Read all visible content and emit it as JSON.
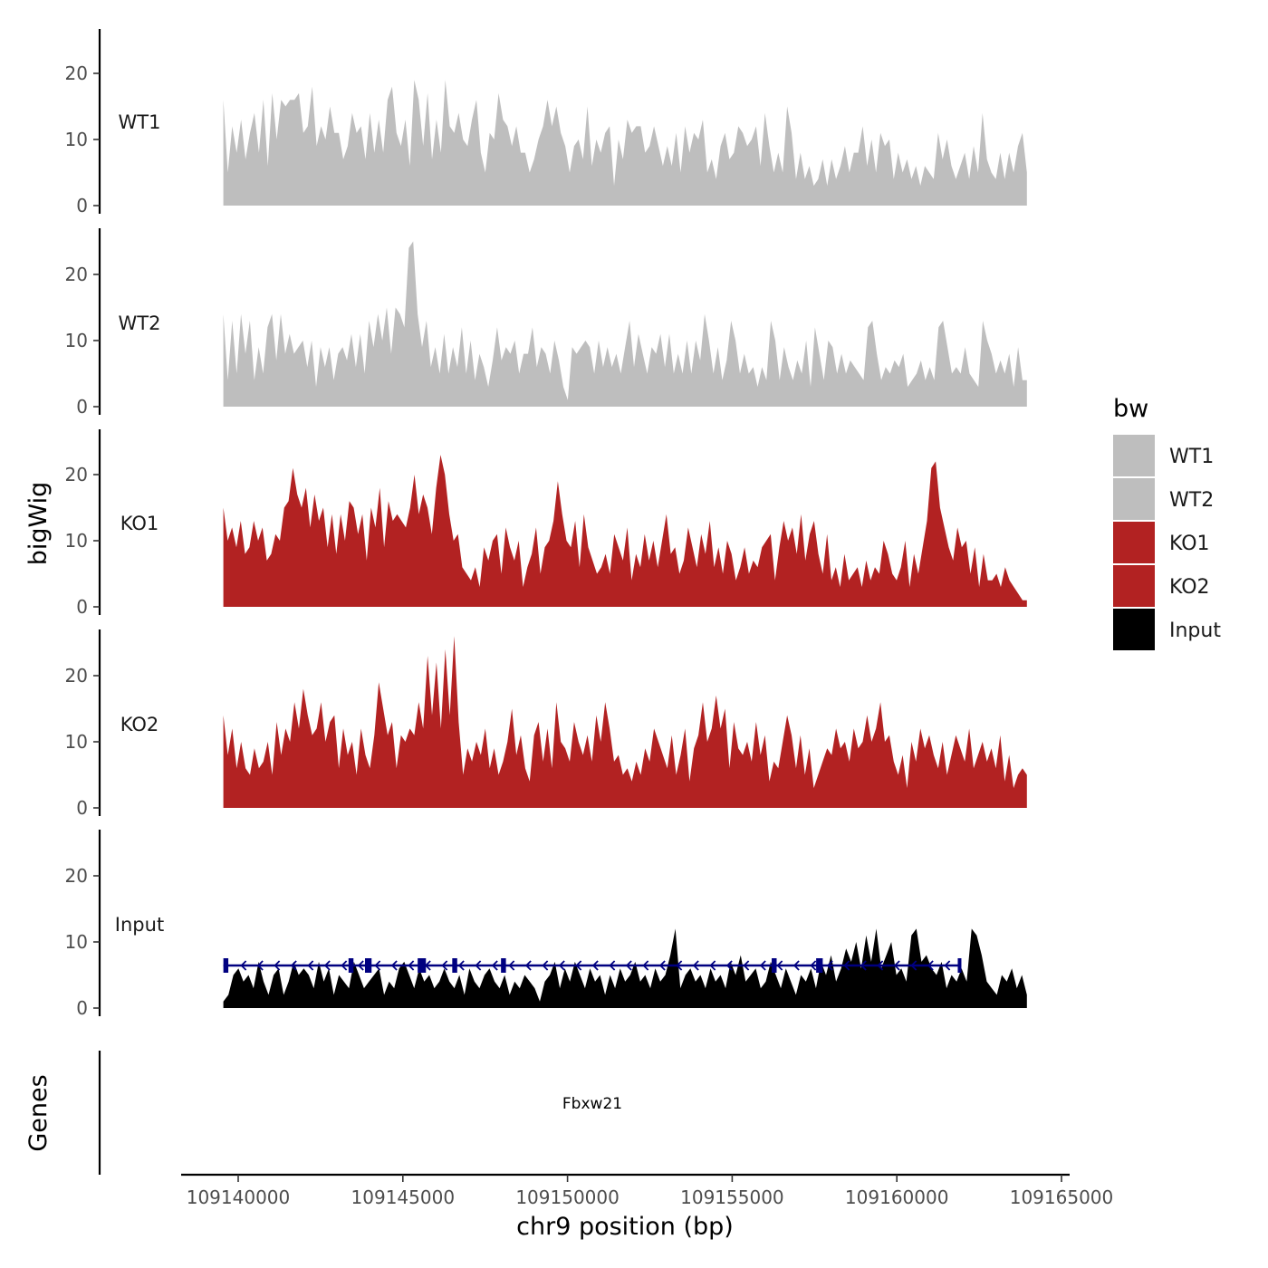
{
  "chart_data": {
    "type": "area",
    "xlabel": "chr9 position (bp)",
    "ylabel": "bigWig",
    "gene_track_label": "Genes",
    "xlim": [
      109139200,
      109165200
    ],
    "ylim": [
      0,
      27
    ],
    "yticks": [
      "0",
      "10",
      "20"
    ],
    "xticks": [
      {
        "value": 109140000,
        "label": "109140000"
      },
      {
        "value": 109145000,
        "label": "109145000"
      },
      {
        "value": 109150000,
        "label": "109150000"
      },
      {
        "value": 109155000,
        "label": "109155000"
      },
      {
        "value": 109160000,
        "label": "109160000"
      },
      {
        "value": 109165000,
        "label": "109165000"
      }
    ],
    "legend": {
      "title": "bw",
      "position": "right",
      "entries": [
        {
          "label": "WT1",
          "color": "#bebebe"
        },
        {
          "label": "WT2",
          "color": "#bebebe"
        },
        {
          "label": "KO1",
          "color": "#b22222"
        },
        {
          "label": "KO2",
          "color": "#b22222"
        },
        {
          "label": "Input",
          "color": "#000000"
        }
      ]
    },
    "x_start": 109139550,
    "x_end": 109163950,
    "series": [
      {
        "name": "WT1",
        "color": "#bebebe",
        "values": [
          16,
          5,
          12,
          8,
          13,
          7,
          11,
          14,
          8,
          16,
          6,
          17,
          10,
          16,
          15,
          16,
          16,
          17,
          11,
          12,
          18,
          9,
          12,
          10,
          15,
          11,
          11,
          7,
          9,
          14,
          11,
          12,
          7,
          14,
          8,
          13,
          8,
          16,
          18,
          11,
          9,
          13,
          6,
          19,
          16,
          9,
          17,
          7,
          13,
          8,
          19,
          12,
          11,
          14,
          10,
          9,
          13,
          16,
          8,
          5,
          11,
          10,
          17,
          13,
          12,
          9,
          12,
          8,
          8,
          5,
          7,
          10,
          12,
          16,
          12,
          15,
          11,
          9,
          5,
          9,
          10,
          7,
          15,
          6,
          10,
          8,
          11,
          12,
          3,
          10,
          7,
          13,
          11,
          12,
          12,
          8,
          9,
          12,
          9,
          6,
          9,
          6,
          11,
          5,
          12,
          8,
          11,
          10,
          13,
          5,
          7,
          4,
          9,
          11,
          7,
          8,
          12,
          11,
          9,
          10,
          12,
          6,
          14,
          9,
          5,
          8,
          5,
          15,
          11,
          4,
          8,
          4,
          6,
          3,
          4,
          7,
          3,
          7,
          4,
          6,
          9,
          5,
          8,
          8,
          12,
          6,
          10,
          5,
          11,
          9,
          10,
          4,
          8,
          5,
          7,
          4,
          6,
          3,
          6,
          5,
          4,
          11,
          7,
          10,
          6,
          4,
          6,
          8,
          4,
          9,
          5,
          14,
          7,
          5,
          4,
          8,
          4,
          8,
          5,
          9,
          11,
          5
        ]
      },
      {
        "name": "WT2",
        "color": "#bebebe",
        "values": [
          14,
          4,
          13,
          5,
          14,
          8,
          13,
          4,
          9,
          5,
          12,
          14,
          7,
          14,
          8,
          11,
          8,
          9,
          10,
          6,
          10,
          3,
          9,
          6,
          9,
          4,
          8,
          9,
          7,
          11,
          6,
          11,
          5,
          13,
          9,
          14,
          10,
          15,
          8,
          15,
          14,
          12,
          24,
          25,
          14,
          9,
          13,
          6,
          9,
          5,
          11,
          5,
          9,
          6,
          12,
          5,
          10,
          4,
          8,
          6,
          3,
          7,
          12,
          7,
          9,
          8,
          10,
          5,
          8,
          8,
          12,
          6,
          9,
          8,
          5,
          10,
          7,
          3,
          1,
          9,
          8,
          9,
          10,
          9,
          5,
          10,
          6,
          9,
          6,
          8,
          5,
          9,
          13,
          6,
          11,
          8,
          5,
          9,
          8,
          11,
          6,
          11,
          5,
          8,
          5,
          10,
          5,
          10,
          7,
          14,
          10,
          5,
          9,
          4,
          7,
          13,
          10,
          5,
          8,
          5,
          6,
          3,
          6,
          4,
          13,
          10,
          4,
          9,
          6,
          4,
          7,
          5,
          10,
          3,
          12,
          8,
          4,
          10,
          9,
          5,
          8,
          5,
          7,
          6,
          5,
          4,
          12,
          13,
          8,
          4,
          6,
          5,
          7,
          6,
          8,
          3,
          4,
          5,
          7,
          4,
          6,
          4,
          12,
          13,
          9,
          5,
          6,
          5,
          9,
          5,
          4,
          3,
          13,
          10,
          8,
          5,
          7,
          5,
          8,
          3,
          9,
          4,
          4
        ]
      },
      {
        "name": "KO1",
        "color": "#b22222",
        "values": [
          15,
          10,
          12,
          9,
          13,
          8,
          9,
          13,
          10,
          12,
          7,
          8,
          11,
          10,
          15,
          16,
          21,
          17,
          15,
          18,
          12,
          17,
          13,
          15,
          9,
          14,
          8,
          14,
          10,
          16,
          15,
          11,
          14,
          7,
          15,
          12,
          18,
          9,
          16,
          13,
          14,
          13,
          12,
          15,
          20,
          14,
          17,
          15,
          11,
          18,
          23,
          20,
          14,
          10,
          11,
          6,
          5,
          4,
          6,
          3,
          9,
          7,
          10,
          11,
          5,
          12,
          9,
          7,
          10,
          3,
          6,
          8,
          12,
          5,
          9,
          10,
          13,
          19,
          14,
          10,
          9,
          13,
          6,
          14,
          9,
          7,
          5,
          6,
          8,
          5,
          11,
          9,
          7,
          12,
          4,
          8,
          6,
          11,
          7,
          10,
          6,
          10,
          14,
          8,
          9,
          5,
          7,
          12,
          9,
          6,
          11,
          8,
          13,
          6,
          9,
          5,
          10,
          8,
          4,
          6,
          9,
          5,
          7,
          6,
          9,
          10,
          11,
          4,
          9,
          13,
          10,
          12,
          8,
          14,
          7,
          11,
          13,
          8,
          5,
          11,
          4,
          6,
          3,
          8,
          4,
          5,
          6,
          3,
          7,
          4,
          6,
          5,
          10,
          8,
          5,
          4,
          6,
          10,
          3,
          8,
          5,
          9,
          13,
          21,
          22,
          15,
          12,
          9,
          7,
          12,
          9,
          10,
          5,
          9,
          3,
          8,
          4,
          4,
          5,
          3,
          6,
          4,
          3,
          2,
          1,
          1
        ]
      },
      {
        "name": "KO2",
        "color": "#b22222",
        "values": [
          14,
          8,
          12,
          6,
          10,
          6,
          5,
          9,
          6,
          7,
          10,
          5,
          13,
          8,
          12,
          10,
          16,
          12,
          18,
          14,
          11,
          12,
          16,
          10,
          13,
          14,
          6,
          12,
          8,
          10,
          5,
          12,
          8,
          6,
          11,
          19,
          15,
          11,
          13,
          6,
          11,
          10,
          12,
          11,
          16,
          12,
          23,
          14,
          22,
          12,
          24,
          14,
          26,
          13,
          5,
          9,
          7,
          10,
          8,
          12,
          6,
          9,
          5,
          7,
          10,
          15,
          8,
          11,
          6,
          4,
          11,
          13,
          7,
          12,
          6,
          16,
          10,
          9,
          7,
          13,
          10,
          8,
          11,
          7,
          14,
          10,
          16,
          12,
          7,
          8,
          5,
          6,
          4,
          7,
          5,
          9,
          7,
          12,
          10,
          8,
          6,
          11,
          5,
          8,
          12,
          4,
          9,
          11,
          16,
          10,
          12,
          17,
          12,
          15,
          6,
          13,
          9,
          8,
          10,
          7,
          13,
          8,
          11,
          4,
          7,
          6,
          10,
          14,
          11,
          6,
          11,
          5,
          9,
          3,
          5,
          7,
          9,
          8,
          12,
          9,
          10,
          7,
          12,
          9,
          10,
          14,
          10,
          12,
          16,
          10,
          11,
          7,
          5,
          8,
          3,
          10,
          7,
          12,
          9,
          11,
          8,
          6,
          10,
          5,
          8,
          11,
          9,
          7,
          12,
          6,
          8,
          10,
          7,
          9,
          6,
          11,
          4,
          8,
          3,
          5,
          6,
          5
        ]
      },
      {
        "name": "Input",
        "color": "#000000",
        "values": [
          1,
          2,
          5,
          6,
          4,
          5,
          3,
          7,
          4,
          2,
          5,
          6,
          2,
          4,
          7,
          5,
          6,
          5,
          3,
          7,
          4,
          6,
          2,
          5,
          4,
          3,
          7,
          5,
          3,
          4,
          5,
          6,
          2,
          4,
          3,
          6,
          7,
          5,
          3,
          6,
          4,
          5,
          3,
          4,
          6,
          4,
          3,
          5,
          2,
          6,
          4,
          3,
          5,
          6,
          4,
          3,
          5,
          2,
          4,
          3,
          5,
          4,
          3,
          1,
          4,
          5,
          7,
          3,
          6,
          4,
          7,
          5,
          3,
          6,
          4,
          5,
          2,
          5,
          3,
          6,
          4,
          5,
          7,
          4,
          5,
          3,
          6,
          4,
          5,
          8,
          12,
          3,
          5,
          6,
          4,
          5,
          3,
          6,
          4,
          5,
          3,
          7,
          5,
          8,
          4,
          5,
          6,
          3,
          4,
          7,
          5,
          3,
          6,
          4,
          2,
          5,
          4,
          6,
          3,
          7,
          5,
          8,
          4,
          6,
          9,
          7,
          10,
          6,
          11,
          7,
          12,
          6,
          8,
          10,
          5,
          6,
          4,
          11,
          12,
          7,
          8,
          6,
          5,
          7,
          3,
          5,
          4,
          6,
          4,
          12,
          11,
          8,
          4,
          3,
          2,
          5,
          4,
          6,
          3,
          5,
          2
        ]
      }
    ],
    "gene": {
      "name": "Fbxw21",
      "start": 109139550,
      "end": 109161950,
      "strand": "-",
      "color": "#000080",
      "exons": [
        {
          "start": 109139550,
          "end": 109139700
        },
        {
          "start": 109143350,
          "end": 109143500
        },
        {
          "start": 109143850,
          "end": 109144050
        },
        {
          "start": 109145450,
          "end": 109145700
        },
        {
          "start": 109146500,
          "end": 109146650
        },
        {
          "start": 109147980,
          "end": 109148130
        },
        {
          "start": 109156200,
          "end": 109156350
        },
        {
          "start": 109157550,
          "end": 109157750
        },
        {
          "start": 109161850,
          "end": 109161950
        }
      ]
    }
  }
}
